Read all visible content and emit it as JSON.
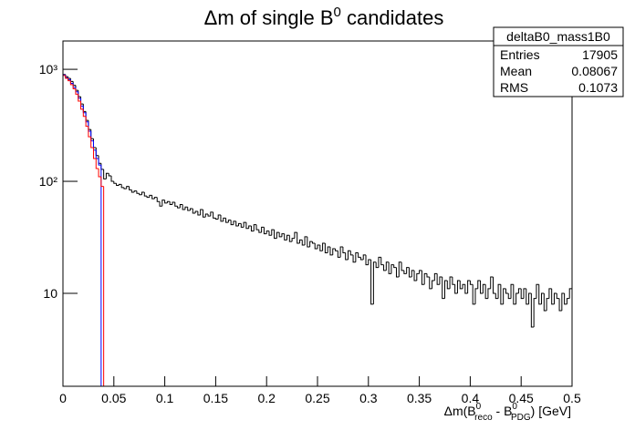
{
  "chart_data": {
    "type": "histogram",
    "title": [
      "Δm of single B",
      "0",
      " candidates"
    ],
    "x_label": [
      "Δm(B",
      "0",
      "reco",
      " - B",
      "0",
      "PDG",
      ") [GeV]"
    ],
    "stats": {
      "name": "deltaB0_mass1B0",
      "rows": [
        [
          "Entries",
          17905
        ],
        [
          "Mean",
          0.08067
        ],
        [
          "RMS",
          0.1073
        ]
      ]
    },
    "log_y": true,
    "xlim": [
      0,
      0.5
    ],
    "ylim": [
      1.48,
      1790
    ],
    "xticks": [
      0,
      0.05,
      0.1,
      0.15,
      0.2,
      0.25,
      0.3,
      0.35,
      0.4,
      0.45,
      0.5
    ],
    "yticks": [
      10,
      {
        "value": 100,
        "label": "10²"
      },
      {
        "value": 1000,
        "label": "10³"
      }
    ],
    "bins": [
      0,
      0.0025,
      0.005,
      0.0075,
      0.01,
      0.0125,
      0.015,
      0.0175,
      0.02,
      0.0225,
      0.025,
      0.0275,
      0.03,
      0.0325,
      0.035,
      0.0375,
      0.04,
      0.0425,
      0.045,
      0.0475,
      0.05,
      0.0525,
      0.055,
      0.0575,
      0.06,
      0.0625,
      0.065,
      0.0675,
      0.07,
      0.0725,
      0.075,
      0.0775,
      0.08,
      0.0825,
      0.085,
      0.0875,
      0.09,
      0.0925,
      0.095,
      0.0975,
      0.1,
      0.1025,
      0.105,
      0.1075,
      0.11,
      0.1125,
      0.115,
      0.1175,
      0.12,
      0.1225,
      0.125,
      0.1275,
      0.13,
      0.1325,
      0.135,
      0.1375,
      0.14,
      0.1425,
      0.145,
      0.1475,
      0.15,
      0.1525,
      0.155,
      0.1575,
      0.16,
      0.1625,
      0.165,
      0.1675,
      0.17,
      0.1725,
      0.175,
      0.1775,
      0.18,
      0.1825,
      0.185,
      0.1875,
      0.19,
      0.1925,
      0.195,
      0.1975,
      0.2,
      0.2025,
      0.205,
      0.2075,
      0.21,
      0.2125,
      0.215,
      0.2175,
      0.22,
      0.2225,
      0.225,
      0.2275,
      0.23,
      0.2325,
      0.235,
      0.2375,
      0.24,
      0.2425,
      0.245,
      0.2475,
      0.25,
      0.2525,
      0.255,
      0.2575,
      0.26,
      0.2625,
      0.265,
      0.2675,
      0.27,
      0.2725,
      0.275,
      0.2775,
      0.28,
      0.2825,
      0.285,
      0.2875,
      0.29,
      0.2925,
      0.295,
      0.2975,
      0.3,
      0.3025,
      0.305,
      0.3075,
      0.31,
      0.3125,
      0.315,
      0.3175,
      0.32,
      0.3225,
      0.325,
      0.3275,
      0.33,
      0.3325,
      0.335,
      0.3375,
      0.34,
      0.3425,
      0.345,
      0.3475,
      0.35,
      0.3525,
      0.355,
      0.3575,
      0.36,
      0.3625,
      0.365,
      0.3675,
      0.37,
      0.3725,
      0.375,
      0.3775,
      0.38,
      0.3825,
      0.385,
      0.3875,
      0.39,
      0.3925,
      0.395,
      0.3975,
      0.4,
      0.4025,
      0.405,
      0.4075,
      0.41,
      0.4125,
      0.415,
      0.4175,
      0.42,
      0.4225,
      0.425,
      0.4275,
      0.43,
      0.4325,
      0.435,
      0.4375,
      0.44,
      0.4425,
      0.445,
      0.4475,
      0.45,
      0.4525,
      0.455,
      0.4575,
      0.46,
      0.4625,
      0.465,
      0.4675,
      0.47,
      0.4725,
      0.475,
      0.4775,
      0.48,
      0.4825,
      0.485,
      0.4875,
      0.49,
      0.4925,
      0.495,
      0.4975,
      0.5
    ],
    "series": [
      {
        "color": "#000000",
        "values": [
          900,
          860,
          830,
          780,
          720,
          650,
          570,
          490,
          420,
          350,
          290,
          240,
          200,
          170,
          145,
          128,
          105,
          118,
          112,
          100,
          96,
          92,
          94,
          88,
          86,
          90,
          84,
          80,
          82,
          78,
          76,
          80,
          74,
          72,
          75,
          70,
          72,
          66,
          60,
          68,
          64,
          66,
          62,
          65,
          60,
          58,
          62,
          56,
          59,
          55,
          57,
          52,
          54,
          50,
          56,
          48,
          51,
          49,
          53,
          47,
          46,
          50,
          44,
          47,
          43,
          45,
          41,
          44,
          40,
          42,
          39,
          43,
          38,
          40,
          36,
          41,
          37,
          35,
          39,
          34,
          36,
          33,
          37,
          31,
          35,
          32,
          34,
          30,
          33,
          29,
          31,
          35,
          28,
          30,
          27,
          32,
          26,
          29,
          28,
          25,
          27,
          24,
          28,
          23,
          26,
          22,
          25,
          24,
          21,
          26,
          23,
          20,
          24,
          22,
          19,
          23,
          21,
          20,
          22,
          18,
          20,
          8,
          19,
          17,
          21,
          18,
          16,
          19,
          15,
          18,
          17,
          14,
          19,
          16,
          15,
          17,
          14,
          16,
          13,
          15,
          16,
          12,
          15,
          14,
          11,
          13,
          15,
          12,
          14,
          9,
          13,
          11,
          14,
          12,
          10,
          13,
          11,
          12,
          10,
          13,
          12,
          8,
          11,
          13,
          10,
          12,
          9,
          11,
          14,
          10,
          9,
          12,
          8,
          11,
          10,
          9,
          12,
          8,
          10,
          11,
          9,
          11,
          8,
          10,
          5,
          9,
          12,
          8,
          10,
          7,
          9,
          11,
          8,
          10,
          9,
          7,
          10,
          8,
          9,
          11
        ]
      },
      {
        "color": "#0000ff",
        "values": [
          890,
          840,
          810,
          750,
          690,
          630,
          550,
          470,
          410,
          340,
          280,
          230,
          190,
          160,
          140,
          0,
          0,
          0,
          0,
          0,
          0,
          0,
          0,
          0,
          0,
          0,
          0,
          0,
          0,
          0,
          0,
          0,
          0,
          0,
          0,
          0,
          0,
          0,
          0,
          0,
          0,
          0,
          0,
          0,
          0,
          0,
          0,
          0,
          0,
          0,
          0,
          0,
          0,
          0,
          0,
          0,
          0,
          0,
          0,
          0,
          0,
          0,
          0,
          0,
          0,
          0,
          0,
          0,
          0,
          0,
          0,
          0,
          0,
          0,
          0,
          0,
          0,
          0,
          0,
          0,
          0,
          0,
          0,
          0,
          0,
          0,
          0,
          0,
          0,
          0,
          0,
          0,
          0,
          0,
          0,
          0,
          0,
          0,
          0,
          0,
          0,
          0,
          0,
          0,
          0,
          0,
          0,
          0,
          0,
          0,
          0,
          0,
          0,
          0,
          0,
          0,
          0,
          0,
          0,
          0,
          0,
          0,
          0,
          0,
          0,
          0,
          0,
          0,
          0,
          0,
          0,
          0,
          0,
          0,
          0,
          0,
          0,
          0,
          0,
          0,
          0,
          0,
          0,
          0,
          0,
          0,
          0,
          0,
          0,
          0,
          0,
          0,
          0,
          0,
          0,
          0,
          0,
          0,
          0,
          0,
          0,
          0,
          0,
          0,
          0,
          0,
          0,
          0,
          0,
          0,
          0,
          0,
          0,
          0,
          0,
          0,
          0,
          0,
          0,
          0,
          0,
          0,
          0,
          0,
          0,
          0,
          0,
          0,
          0,
          0,
          0,
          0,
          0,
          0,
          0,
          0,
          0,
          0,
          0,
          0
        ]
      },
      {
        "color": "#ff0000",
        "values": [
          880,
          830,
          790,
          730,
          670,
          600,
          520,
          440,
          380,
          310,
          250,
          200,
          160,
          130,
          110,
          90,
          0,
          0,
          0,
          0,
          0,
          0,
          0,
          0,
          0,
          0,
          0,
          0,
          0,
          0,
          0,
          0,
          0,
          0,
          0,
          0,
          0,
          0,
          0,
          0,
          0,
          0,
          0,
          0,
          0,
          0,
          0,
          0,
          0,
          0,
          0,
          0,
          0,
          0,
          0,
          0,
          0,
          0,
          0,
          0,
          0,
          0,
          0,
          0,
          0,
          0,
          0,
          0,
          0,
          0,
          0,
          0,
          0,
          0,
          0,
          0,
          0,
          0,
          0,
          0,
          0,
          0,
          0,
          0,
          0,
          0,
          0,
          0,
          0,
          0,
          0,
          0,
          0,
          0,
          0,
          0,
          0,
          0,
          0,
          0,
          0,
          0,
          0,
          0,
          0,
          0,
          0,
          0,
          0,
          0,
          0,
          0,
          0,
          0,
          0,
          0,
          0,
          0,
          0,
          0,
          0,
          0,
          0,
          0,
          0,
          0,
          0,
          0,
          0,
          0,
          0,
          0,
          0,
          0,
          0,
          0,
          0,
          0,
          0,
          0,
          0,
          0,
          0,
          0,
          0,
          0,
          0,
          0,
          0,
          0,
          0,
          0,
          0,
          0,
          0,
          0,
          0,
          0,
          0,
          0,
          0,
          0,
          0,
          0,
          0,
          0,
          0,
          0,
          0,
          0,
          0,
          0,
          0,
          0,
          0,
          0,
          0,
          0,
          0,
          0,
          0,
          0,
          0,
          0,
          0,
          0,
          0,
          0,
          0,
          0,
          0,
          0,
          0,
          0,
          0,
          0,
          0,
          0,
          0,
          0
        ]
      }
    ]
  }
}
